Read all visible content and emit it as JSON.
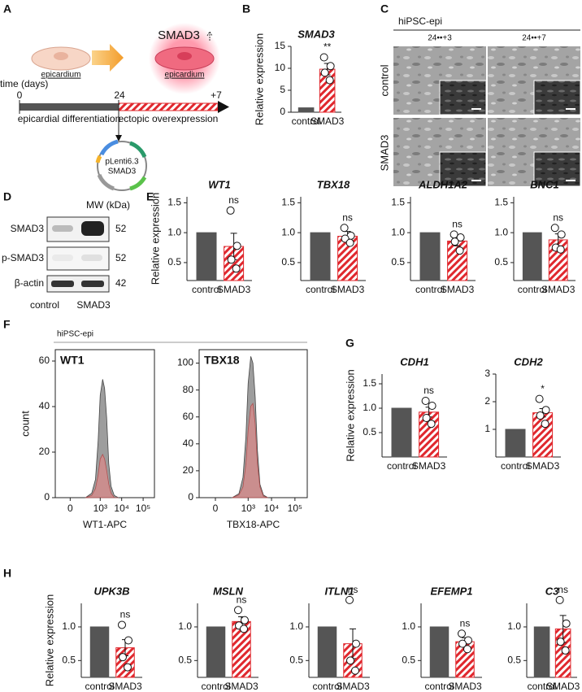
{
  "panel_labels": [
    "A",
    "B",
    "C",
    "D",
    "E",
    "F",
    "G",
    "H"
  ],
  "diagram": {
    "time_label": "time (days)",
    "day_start": "0",
    "day_mid": "24",
    "day_end": "+7",
    "cell_label_1": "epicardium",
    "cell_label_2": "epicardium",
    "overexpressed": "SMAD3",
    "phase_1": "epicardial differentiation",
    "phase_2": "ectopic overexpression",
    "plasmid": [
      "pLenti6.3",
      "SMAD3"
    ]
  },
  "micrographs": {
    "title": "hiPSC-epi",
    "columns": [
      "24••+3",
      "24••+7"
    ],
    "rows": [
      "control",
      "SMAD3"
    ]
  },
  "western_blot": {
    "mw_header": "MW (kDa)",
    "rows": [
      {
        "protein": "SMAD3",
        "mw": "52"
      },
      {
        "protein": "p-SMAD3",
        "mw": "52"
      },
      {
        "protein": "β-actin",
        "mw": "42"
      }
    ],
    "lanes": [
      "control",
      "SMAD3"
    ]
  },
  "flow_header": "hiPSC-epi",
  "chart_data": [
    {
      "type": "bar",
      "title": "SMAD3",
      "ylabel": "Relative expression",
      "categories": [
        "control",
        "SMAD3"
      ],
      "values": [
        1,
        9.8
      ],
      "errors": [
        null,
        1.3
      ],
      "points": [
        12.5,
        10.5,
        9,
        7.3
      ],
      "significance": "**",
      "colors": [
        "#555555",
        "#e0282e"
      ],
      "ylim": [
        0,
        15
      ],
      "yticks": [
        0,
        5,
        10,
        15
      ]
    },
    {
      "type": "bar",
      "title": "WT1",
      "ylabel": "Relative expression",
      "categories": [
        "control",
        "SMAD3"
      ],
      "values": [
        1,
        0.77
      ],
      "errors": [
        null,
        0.22
      ],
      "points": [
        1.37,
        0.78,
        0.55,
        0.4
      ],
      "significance": "ns",
      "colors": [
        "#555555",
        "#e0282e"
      ],
      "ylim": [
        0.2,
        1.6
      ],
      "yticks": [
        0.5,
        {
          "value": 1,
          "label": "1.0"
        },
        1.5
      ]
    },
    {
      "type": "bar",
      "title": "TBX18",
      "categories": [
        "control",
        "SMAD3"
      ],
      "values": [
        1,
        0.94
      ],
      "errors": [
        null,
        0.08
      ],
      "points": [
        1.08,
        0.95,
        0.9,
        0.83
      ],
      "significance": "ns",
      "colors": [
        "#555555",
        "#e0282e"
      ],
      "ylim": [
        0.2,
        1.6
      ],
      "yticks": [
        0.5,
        {
          "value": 1,
          "label": "1.0"
        },
        1.5
      ]
    },
    {
      "type": "bar",
      "title": "ALDH1A2",
      "categories": [
        "control",
        "SMAD3"
      ],
      "values": [
        1,
        0.86
      ],
      "errors": [
        null,
        0.08
      ],
      "points": [
        0.97,
        0.92,
        0.85,
        0.7
      ],
      "significance": "ns",
      "colors": [
        "#555555",
        "#e0282e"
      ],
      "ylim": [
        0.2,
        1.6
      ],
      "yticks": [
        0.5,
        {
          "value": 1,
          "label": "1.0"
        },
        1.5
      ]
    },
    {
      "type": "bar",
      "title": "BNC1",
      "categories": [
        "control",
        "SMAD3"
      ],
      "values": [
        1,
        0.88
      ],
      "errors": [
        null,
        0.1
      ],
      "points": [
        1.08,
        0.97,
        0.75,
        0.72
      ],
      "significance": "ns",
      "colors": [
        "#555555",
        "#e0282e"
      ],
      "ylim": [
        0.2,
        1.6
      ],
      "yticks": [
        0.5,
        {
          "value": 1,
          "label": "1.0"
        },
        1.5
      ]
    },
    {
      "type": "density",
      "label": "WT1",
      "xlabel": "WT1-APC",
      "ylabel": "count",
      "xscale": "asinh",
      "xlim": [
        -190,
        336000
      ],
      "xticks": [
        0,
        {
          "value": 1000,
          "label": "10³"
        },
        {
          "value": 10000,
          "label": "10⁴"
        },
        {
          "value": 100000,
          "label": "10⁵"
        }
      ],
      "ylim": [
        0,
        65
      ],
      "yticks": [
        0,
        20,
        40,
        60
      ],
      "x": [
        200,
        400,
        600,
        800,
        1000,
        1300,
        1600,
        2000,
        2500,
        3200,
        4500,
        7000
      ],
      "series": [
        {
          "color": "#8c8c8c",
          "values": [
            0,
            2,
            8,
            25,
            45,
            52,
            48,
            35,
            15,
            5,
            1,
            0
          ]
        },
        {
          "color": "#d98a8a",
          "values": [
            0,
            1,
            4,
            10,
            17,
            19,
            17,
            12,
            6,
            2,
            0,
            0
          ]
        }
      ]
    },
    {
      "type": "density",
      "label": "TBX18",
      "xlabel": "TBX18-APC",
      "xscale": "asinh",
      "xlim": [
        -190,
        336000
      ],
      "xticks": [
        0,
        {
          "value": 1000,
          "label": "10³"
        },
        {
          "value": 10000,
          "label": "10⁴"
        },
        {
          "value": 100000,
          "label": "10⁵"
        }
      ],
      "ylim": [
        0,
        110
      ],
      "yticks": [
        0,
        20,
        40,
        60,
        80,
        100
      ],
      "x": [
        200,
        400,
        600,
        800,
        1000,
        1300,
        1600,
        2000,
        2500,
        3200,
        4500,
        7000
      ],
      "series": [
        {
          "color": "#8c8c8c",
          "values": [
            0,
            3,
            15,
            45,
            85,
            105,
            100,
            75,
            35,
            10,
            2,
            0
          ]
        },
        {
          "color": "#d98a8a",
          "values": [
            0,
            2,
            8,
            25,
            50,
            68,
            70,
            55,
            25,
            8,
            1,
            0
          ]
        }
      ]
    },
    {
      "type": "bar",
      "title": "CDH1",
      "ylabel": "Relative expression",
      "categories": [
        "control",
        "SMAD3"
      ],
      "values": [
        1,
        0.92
      ],
      "errors": [
        null,
        0.1
      ],
      "points": [
        1.15,
        1.05,
        0.8,
        0.68
      ],
      "significance": "ns",
      "colors": [
        "#555555",
        "#e0282e"
      ],
      "ylim": [
        0,
        1.7
      ],
      "yticks": [
        0.5,
        {
          "value": 1,
          "label": "1.0"
        },
        1.5
      ]
    },
    {
      "type": "bar",
      "title": "CDH2",
      "categories": [
        "control",
        "SMAD3"
      ],
      "values": [
        1,
        1.6
      ],
      "errors": [
        null,
        0.15
      ],
      "points": [
        2.1,
        1.7,
        1.5,
        1.2
      ],
      "significance": "*",
      "colors": [
        "#555555",
        "#e0282e"
      ],
      "ylim": [
        0,
        3
      ],
      "yticks": [
        1,
        2,
        3
      ]
    },
    {
      "type": "bar",
      "title": "UPK3B",
      "ylabel": "Relative expression",
      "categories": [
        "control",
        "SMAD3"
      ],
      "values": [
        1,
        0.69
      ],
      "errors": [
        null,
        0.12
      ],
      "points": [
        1.03,
        0.8,
        0.55,
        0.4
      ],
      "significance": "ns",
      "colors": [
        "#555555",
        "#e0282e"
      ],
      "ylim": [
        0.25,
        1.35
      ],
      "yticks": [
        0.5,
        {
          "value": 1,
          "label": "1.0"
        }
      ]
    },
    {
      "type": "bar",
      "title": "MSLN",
      "categories": [
        "control",
        "SMAD3"
      ],
      "values": [
        1,
        1.08
      ],
      "errors": [
        null,
        0.07
      ],
      "points": [
        1.25,
        1.1,
        1.02,
        0.97
      ],
      "significance": "ns",
      "colors": [
        "#555555",
        "#e0282e"
      ],
      "ylim": [
        0.25,
        1.35
      ],
      "yticks": [
        0.5,
        {
          "value": 1,
          "label": "1.0"
        }
      ]
    },
    {
      "type": "bar",
      "title": "ITLN1",
      "categories": [
        "control",
        "SMAD3"
      ],
      "values": [
        1,
        0.75
      ],
      "errors": [
        null,
        0.22
      ],
      "points": [
        1.4,
        0.75,
        0.5,
        0.35
      ],
      "significance": "ns",
      "colors": [
        "#555555",
        "#e0282e"
      ],
      "ylim": [
        0.25,
        1.35
      ],
      "yticks": [
        0.5,
        {
          "value": 1,
          "label": "1.0"
        }
      ]
    },
    {
      "type": "bar",
      "title": "EFEMP1",
      "categories": [
        "control",
        "SMAD3"
      ],
      "values": [
        1,
        0.78
      ],
      "errors": [
        null,
        0.06
      ],
      "points": [
        0.9,
        0.8,
        0.75,
        0.67
      ],
      "significance": "ns",
      "colors": [
        "#555555",
        "#e0282e"
      ],
      "ylim": [
        0.25,
        1.35
      ],
      "yticks": [
        0.5,
        {
          "value": 1,
          "label": "1.0"
        }
      ]
    },
    {
      "type": "bar",
      "title": "C3",
      "categories": [
        "control",
        "SMAD3"
      ],
      "values": [
        1,
        0.97
      ],
      "errors": [
        null,
        0.2
      ],
      "points": [
        1.4,
        1.05,
        0.78,
        0.65
      ],
      "significance": "ns",
      "colors": [
        "#555555",
        "#e0282e"
      ],
      "ylim": [
        0.25,
        1.35
      ],
      "yticks": [
        0.5,
        {
          "value": 1,
          "label": "1.0"
        }
      ]
    }
  ]
}
